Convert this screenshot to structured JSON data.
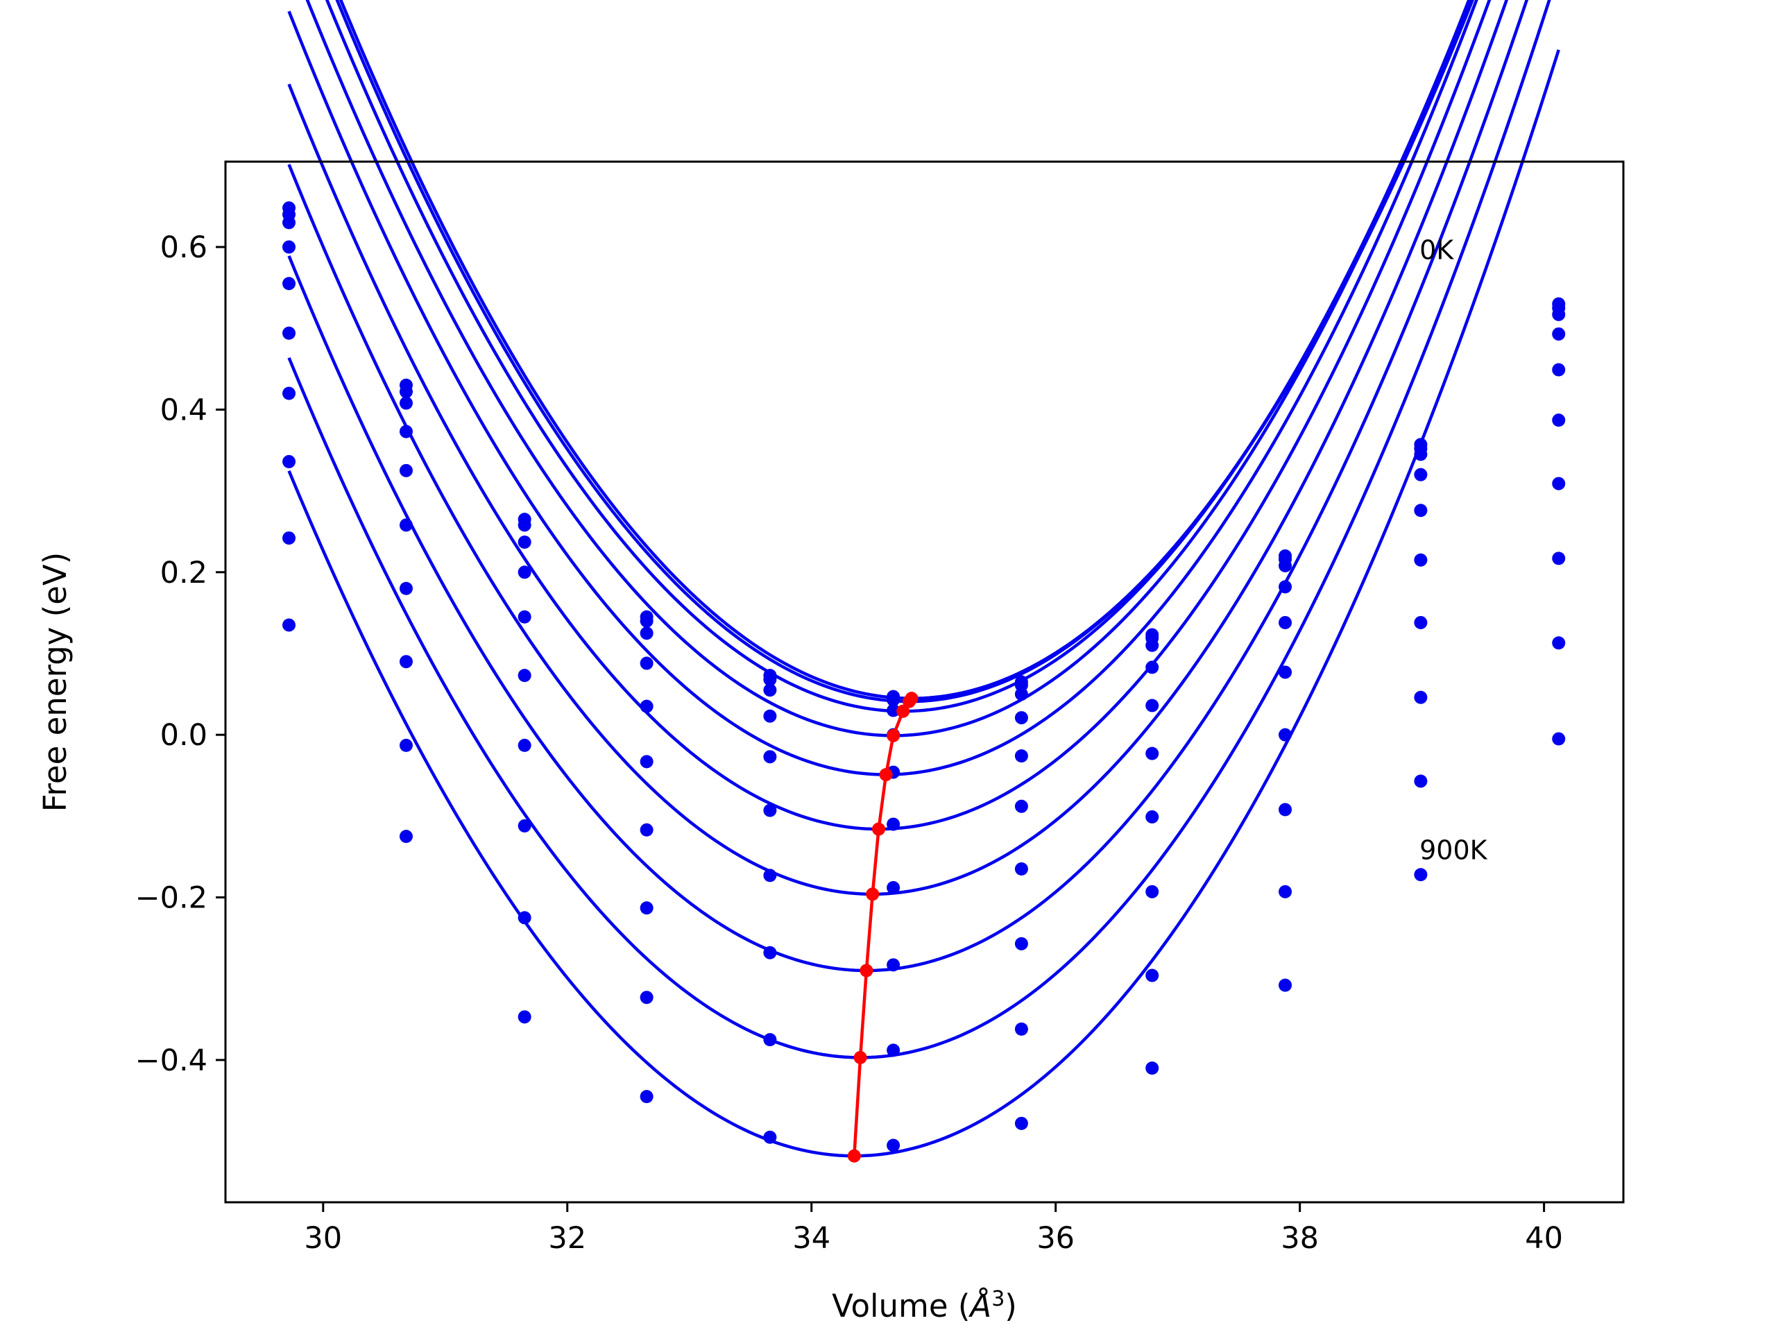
{
  "chart_data": {
    "type": "line",
    "title": "",
    "xlabel": "Volume (",
    "xlabel_symbol": "Å",
    "xlabel_exponent": "3",
    "xlabel_close": ")",
    "ylabel": "Free energy (eV)",
    "xlim": [
      29.2,
      40.65
    ],
    "ylim": [
      -0.575,
      0.705
    ],
    "xticks": [
      30,
      32,
      34,
      36,
      38,
      40
    ],
    "xtick_labels": [
      "30",
      "32",
      "34",
      "36",
      "38",
      "40"
    ],
    "yticks": [
      -0.4,
      -0.2,
      0.0,
      0.2,
      0.4,
      0.6
    ],
    "ytick_labels": [
      "−0.4",
      "−0.2",
      "0.0",
      "0.2",
      "0.4",
      "0.6"
    ],
    "grid": false,
    "legend": "none",
    "annotations": [
      {
        "text": "0K",
        "x": 38.98,
        "y": 0.585
      },
      {
        "text": "900K",
        "x": 38.98,
        "y": -0.153
      }
    ],
    "series_color": "#0000ee",
    "min_color": "#ff0000",
    "x": [
      29.72,
      30.68,
      31.65,
      32.65,
      33.66,
      34.67,
      35.72,
      36.79,
      37.88,
      38.99,
      40.12
    ],
    "series": [
      {
        "points": [
          0.648,
          0.43,
          0.265,
          0.145,
          0.073,
          0.047,
          0.065,
          0.123,
          0.22,
          0.357,
          0.53
        ],
        "fit": [
          0.04,
          34.82,
          0.0448,
          0.00015
        ]
      },
      {
        "points": [
          0.64,
          0.422,
          0.258,
          0.14,
          0.068,
          0.043,
          0.061,
          0.119,
          0.216,
          0.352,
          0.525
        ],
        "fit": [
          0.04,
          34.8,
          0.041,
          0.00015
        ]
      },
      {
        "points": [
          0.63,
          0.408,
          0.237,
          0.125,
          0.055,
          0.03,
          0.05,
          0.11,
          0.208,
          0.345,
          0.517
        ],
        "fit": [
          0.04,
          34.75,
          0.029,
          0.00015
        ]
      },
      {
        "points": [
          0.6,
          0.373,
          0.2,
          0.088,
          0.023,
          0.0,
          0.021,
          0.083,
          0.182,
          0.32,
          0.493
        ],
        "fit": [
          0.04,
          34.67,
          -0.001,
          0.00015
        ]
      },
      {
        "points": [
          0.555,
          0.325,
          0.145,
          0.035,
          -0.027,
          -0.046,
          -0.026,
          0.036,
          0.138,
          0.276,
          0.449
        ],
        "fit": [
          0.04,
          34.61,
          -0.049,
          0.00015
        ]
      },
      {
        "points": [
          0.494,
          0.258,
          0.073,
          -0.033,
          -0.093,
          -0.11,
          -0.088,
          -0.023,
          0.077,
          0.215,
          0.387
        ],
        "fit": [
          0.04,
          34.55,
          -0.116,
          0.00015
        ]
      },
      {
        "points": [
          0.42,
          0.18,
          -0.013,
          -0.117,
          -0.173,
          -0.188,
          -0.165,
          -0.101,
          0.0,
          0.138,
          0.309
        ],
        "fit": [
          0.04,
          34.5,
          -0.196,
          0.00015
        ]
      },
      {
        "points": [
          0.336,
          0.09,
          -0.112,
          -0.213,
          -0.268,
          -0.283,
          -0.257,
          -0.193,
          -0.092,
          0.046,
          0.217
        ],
        "fit": [
          0.04,
          34.45,
          -0.29,
          0.00015
        ]
      },
      {
        "points": [
          0.242,
          -0.013,
          -0.225,
          -0.323,
          -0.375,
          -0.388,
          -0.362,
          -0.296,
          -0.193,
          -0.057,
          0.113
        ],
        "fit": [
          0.04,
          34.4,
          -0.397,
          0.00015
        ]
      },
      {
        "points": [
          0.135,
          -0.125,
          -0.347,
          -0.445,
          -0.495,
          -0.505,
          -0.478,
          -0.41,
          -0.308,
          -0.172,
          -0.005
        ],
        "fit": [
          0.04,
          34.35,
          -0.518,
          0.00015
        ]
      }
    ]
  }
}
